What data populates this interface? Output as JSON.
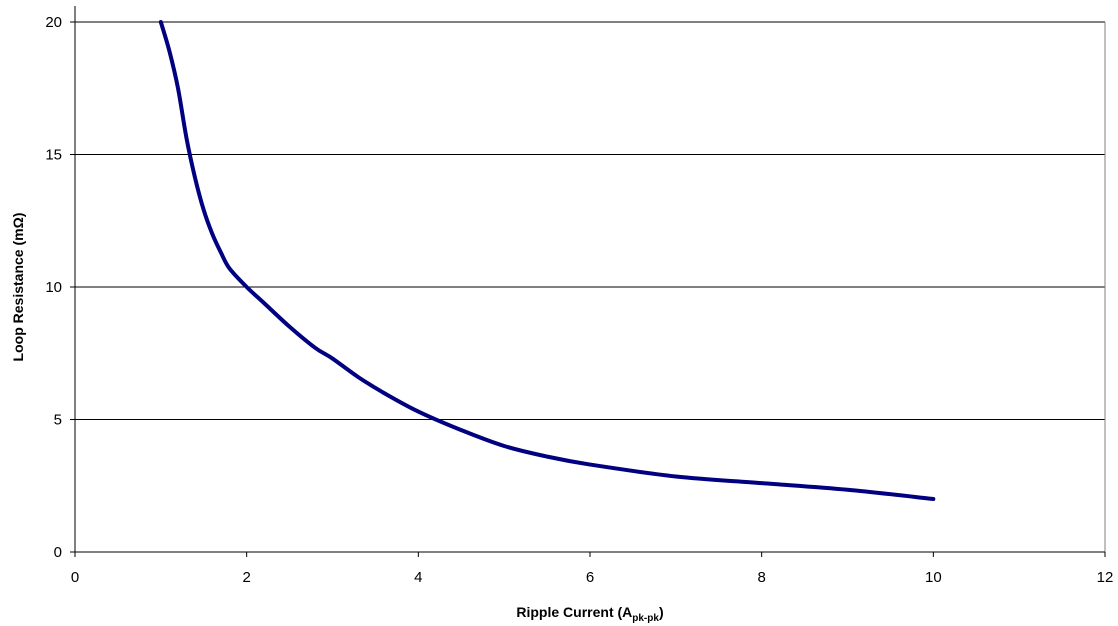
{
  "chart_data": {
    "type": "line",
    "title": "",
    "xlabel": "Ripple Current (A",
    "xlabel_sub": "pk-pk",
    "xlabel_suffix": ")",
    "ylabel": "Loop Resistance (mΩ)",
    "xlim": [
      0,
      12
    ],
    "ylim": [
      0,
      20
    ],
    "x_ticks": [
      0,
      2,
      4,
      6,
      8,
      10,
      12
    ],
    "y_ticks": [
      0,
      5,
      10,
      15,
      20
    ],
    "x_tick_labels": [
      "0",
      "2",
      "4",
      "6",
      "8",
      "10",
      "12"
    ],
    "y_tick_labels": [
      "0",
      "5",
      "10",
      "15",
      "20"
    ],
    "grid": "horizontal",
    "legend": "none",
    "series": [
      {
        "color": "#000080",
        "x": [
          1.0,
          1.1,
          1.2,
          1.3,
          1.4,
          1.5,
          1.6,
          1.7,
          1.8,
          2.0,
          2.2,
          2.5,
          2.8,
          3.0,
          3.3,
          3.6,
          4.0,
          4.5,
          5.0,
          5.5,
          6.0,
          7.0,
          8.0,
          9.0,
          10.0
        ],
        "y": [
          20.0,
          18.9,
          17.5,
          15.6,
          14.1,
          12.9,
          12.0,
          11.3,
          10.7,
          10.0,
          9.4,
          8.5,
          7.7,
          7.3,
          6.6,
          6.0,
          5.3,
          4.6,
          4.0,
          3.6,
          3.3,
          2.85,
          2.6,
          2.35,
          2.0
        ]
      }
    ]
  }
}
